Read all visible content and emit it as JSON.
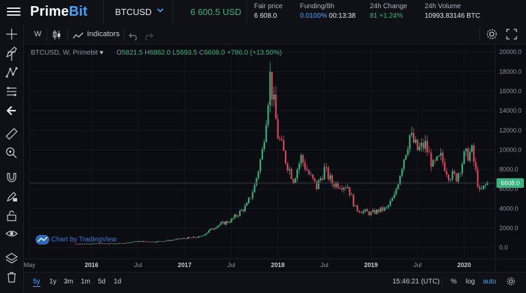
{
  "header": {
    "brand_prefix": "Prime",
    "brand_suffix": "Bit",
    "symbol": "BTCUSD",
    "last_price": "6 600.5 USD",
    "stats": [
      {
        "label": "Fair price",
        "value": "6 608.0"
      },
      {
        "label": "Funding/8h",
        "value": "0.0100%",
        "value2": "00:13:38"
      },
      {
        "label": "24h Change",
        "value": "81 +1.24%"
      },
      {
        "label": "24h Volume",
        "value": "10993.83146 BTC"
      }
    ]
  },
  "toolbar": {
    "interval": "W",
    "indicators_label": "Indicators"
  },
  "legend": {
    "title": "BTCUSD, W, Primebit",
    "open_label": "O",
    "open": "5821.5",
    "high_label": "H",
    "high": "6862.0",
    "low_label": "L",
    "low": "5693.5",
    "close_label": "C",
    "close": "6608.0",
    "change": "+786.0 (+13.50%)"
  },
  "watermark": "Chart by TradingView",
  "bottom": {
    "ranges": [
      "5y",
      "1y",
      "3m",
      "1m",
      "5d",
      "1d"
    ],
    "time": "15:46:21 (UTC)",
    "percent_label": "%",
    "log_label": "log",
    "auto_label": "auto"
  },
  "colors": {
    "up": "#36b37e",
    "down": "#e0455f",
    "accent": "#3fa7ff",
    "price_line_label": "#36b37e"
  },
  "icons": [
    "menu-icon",
    "chevron-down-icon",
    "candles-icon",
    "indicators-icon",
    "undo-icon",
    "redo-icon",
    "gear-icon",
    "fullscreen-icon",
    "crosshair-icon",
    "pen-icon",
    "text-icon",
    "pattern-icon",
    "fib-icon",
    "arrow-left-icon",
    "ruler-icon",
    "zoom-icon",
    "magnet-icon",
    "lock-draw-icon",
    "lock-icon",
    "eye-icon",
    "layers-icon",
    "trash-icon"
  ],
  "chart_data": {
    "type": "candlestick",
    "title": "BTCUSD, W, Primebit",
    "y_ticks": [
      0,
      2000,
      4000,
      6000,
      8000,
      10000,
      12000,
      14000,
      16000,
      18000,
      20000
    ],
    "ylim": [
      -1000,
      20500
    ],
    "x_ticks": [
      "May",
      "2016",
      "Jul",
      "2017",
      "Jul",
      "2018",
      "Jul",
      "2019",
      "Jul",
      "2020"
    ],
    "last_price_label": "6608.0",
    "last_price": 6608,
    "path_points": [
      [
        "2015-11",
        400
      ],
      [
        "2016-01",
        420
      ],
      [
        "2016-03",
        415
      ],
      [
        "2016-05",
        450
      ],
      [
        "2016-07",
        650
      ],
      [
        "2016-09",
        610
      ],
      [
        "2016-11",
        740
      ],
      [
        "2017-01",
        960
      ],
      [
        "2017-03",
        1100
      ],
      [
        "2017-05",
        2200
      ],
      [
        "2017-07",
        2800
      ],
      [
        "2017-09",
        4300
      ],
      [
        "2017-10",
        6300
      ],
      [
        "2017-11",
        9800
      ],
      [
        "2017-12",
        17500
      ],
      [
        "2018-01",
        11500
      ],
      [
        "2018-02",
        9000
      ],
      [
        "2018-03",
        7000
      ],
      [
        "2018-04",
        9200
      ],
      [
        "2018-05",
        7500
      ],
      [
        "2018-06",
        6200
      ],
      [
        "2018-07",
        8000
      ],
      [
        "2018-08",
        6600
      ],
      [
        "2018-09",
        6500
      ],
      [
        "2018-10",
        6300
      ],
      [
        "2018-11",
        4000
      ],
      [
        "2018-12",
        3700
      ],
      [
        "2019-01",
        3500
      ],
      [
        "2019-02",
        3800
      ],
      [
        "2019-03",
        4000
      ],
      [
        "2019-04",
        5200
      ],
      [
        "2019-05",
        8500
      ],
      [
        "2019-06",
        11500
      ],
      [
        "2019-07",
        10000
      ],
      [
        "2019-08",
        10500
      ],
      [
        "2019-09",
        8300
      ],
      [
        "2019-10",
        9200
      ],
      [
        "2019-11",
        7500
      ],
      [
        "2019-12",
        7200
      ],
      [
        "2020-01",
        9300
      ],
      [
        "2020-02",
        9800
      ],
      [
        "2020-03",
        5600
      ],
      [
        "2020-04",
        6608
      ]
    ]
  }
}
